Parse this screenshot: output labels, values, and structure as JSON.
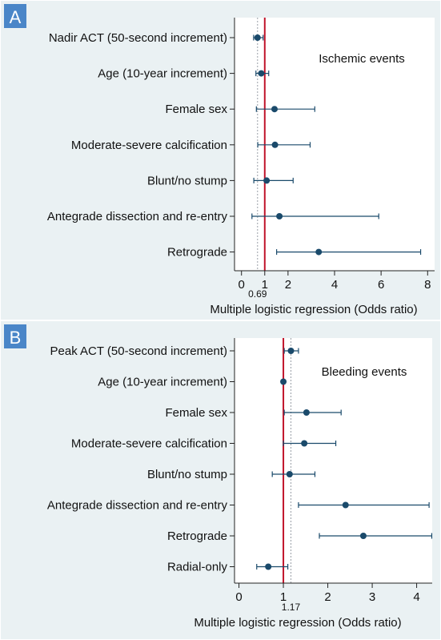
{
  "chart_data": [
    {
      "panel_label": "A",
      "type": "forest",
      "annotation": "Ischemic events",
      "xlabel": "Multiple logistic regression (Odds ratio)",
      "xlim": [
        -0.3,
        8.3
      ],
      "ticks": [
        "0",
        "1",
        "2",
        "4",
        "6",
        "8"
      ],
      "tick_values": [
        0,
        1,
        2,
        4,
        6,
        8
      ],
      "reference_lines": {
        "null_value": 1,
        "marked_value": 0.69,
        "marked_label": "0.69"
      },
      "grid": false,
      "rows": [
        {
          "label": "Nadir ACT (50-second increment)",
          "or": 0.69,
          "ci": [
            0.52,
            0.93
          ]
        },
        {
          "label": "Age (10-year increment)",
          "or": 0.85,
          "ci": [
            0.62,
            1.17
          ]
        },
        {
          "label": "Female sex",
          "or": 1.42,
          "ci": [
            0.64,
            3.15
          ]
        },
        {
          "label": "Moderate-severe calcification",
          "or": 1.44,
          "ci": [
            0.7,
            2.95
          ]
        },
        {
          "label": "Blunt/no stump",
          "or": 1.08,
          "ci": [
            0.53,
            2.22
          ]
        },
        {
          "label": "Antegrade dissection and re-entry",
          "or": 1.63,
          "ci": [
            0.45,
            5.9
          ]
        },
        {
          "label": "Retrograde",
          "or": 3.32,
          "ci": [
            1.51,
            7.7
          ]
        }
      ]
    },
    {
      "panel_label": "B",
      "type": "forest",
      "annotation": "Bleeding events",
      "xlabel": "Multiple logistic regression (Odds ratio)",
      "xlim": [
        -0.1,
        4.35
      ],
      "ticks": [
        "0",
        "1",
        "2",
        "3",
        "4"
      ],
      "tick_values": [
        0,
        1,
        2,
        3,
        4
      ],
      "reference_lines": {
        "null_value": 1,
        "marked_value": 1.17,
        "marked_label": "1.17"
      },
      "grid": false,
      "rows": [
        {
          "label": "Peak ACT (50-second increment)",
          "or": 1.17,
          "ci": [
            1.02,
            1.34
          ]
        },
        {
          "label": "Age (10-year increment)",
          "or": 1.0,
          "ci": [
            0.98,
            1.02
          ]
        },
        {
          "label": "Female sex",
          "or": 1.52,
          "ci": [
            1.02,
            2.3
          ]
        },
        {
          "label": "Moderate-severe calcification",
          "or": 1.47,
          "ci": [
            1.0,
            2.18
          ]
        },
        {
          "label": "Blunt/no stump",
          "or": 1.14,
          "ci": [
            0.75,
            1.71
          ]
        },
        {
          "label": "Antegrade dissection and re-entry",
          "or": 2.4,
          "ci": [
            1.34,
            4.28
          ]
        },
        {
          "label": "Retrograde",
          "or": 2.8,
          "ci": [
            1.81,
            4.34
          ]
        },
        {
          "label": "Radial-only",
          "or": 0.66,
          "ci": [
            0.4,
            1.1
          ]
        }
      ]
    }
  ],
  "colors": {
    "panel_background": "#eaf1f3",
    "plot_background": "#ffffff",
    "null_line": "#c0142b",
    "marked_line": "#9aa0a8",
    "point": "#1a4a6b",
    "whisker": "#1a4a6b",
    "panel_label_background": "#4a86c8",
    "panel_label_text": "#ffffff",
    "axis": "#222222",
    "text": "#111111"
  }
}
